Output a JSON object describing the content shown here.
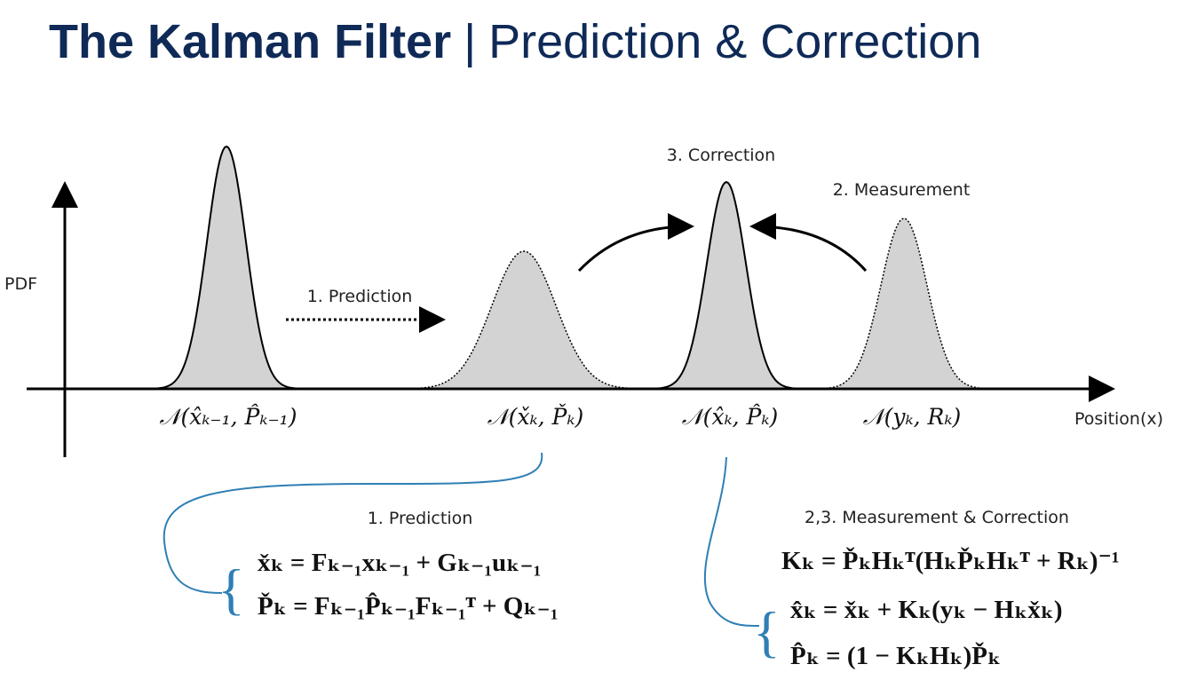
{
  "header": {
    "title_bold": "The Kalman Filter",
    "separator": "|",
    "title_rest": "Prediction & Correction"
  },
  "axes": {
    "y_label": "PDF",
    "x_label": "Position(x)"
  },
  "distributions": [
    "𝒩(x̂ₖ₋₁, P̂ₖ₋₁)",
    "𝒩(x̌ₖ, P̌ₖ)",
    "𝒩(x̂ₖ, P̂ₖ)",
    "𝒩(yₖ, Rₖ)"
  ],
  "steps": {
    "prediction": "1. Prediction",
    "correction": "3. Correction",
    "measurement": "2. Measurement"
  },
  "prediction_panel": {
    "heading": "1. Prediction",
    "equations": [
      "x̌ₖ = Fₖ₋₁xₖ₋₁ + Gₖ₋₁uₖ₋₁",
      "P̌ₖ = Fₖ₋₁P̂ₖ₋₁Fₖ₋₁ᵀ + Qₖ₋₁"
    ]
  },
  "correction_panel": {
    "heading": "2,3. Measurement & Correction",
    "equations": [
      "Kₖ = P̌ₖHₖᵀ(HₖP̌ₖHₖᵀ + Rₖ)⁻¹",
      "x̂ₖ = x̌ₖ + Kₖ(yₖ − Hₖx̌ₖ)",
      "P̂ₖ = (1 − KₖHₖ)P̌ₖ"
    ]
  }
}
